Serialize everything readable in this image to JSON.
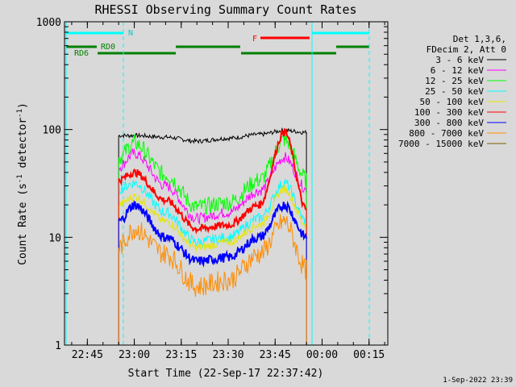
{
  "chart_data": {
    "type": "line",
    "title": "RHESSI Observing Summary Count Rates",
    "xlabel": "Start Time (22-Sep-17 22:37:42)",
    "ylabel": "Count Rate (s",
    "ylabel_sup": "-1",
    "ylabel_mid": " detector",
    "ylabel_end": ")",
    "yscale": "log",
    "xlim": [
      "22:37:42",
      "00:21:00"
    ],
    "ylim": [
      1,
      1000
    ],
    "x_ticks": [
      "22:45",
      "23:00",
      "23:15",
      "23:30",
      "23:45",
      "00:00",
      "00:15"
    ],
    "y_ticks": [
      "1",
      "10",
      "100",
      "1000"
    ],
    "legend": {
      "position": "top-right",
      "header": [
        "Det 1,3,6,",
        "FDecim 2, Att 0"
      ],
      "entries": [
        {
          "label": "3 - 6 keV",
          "color": "#000000"
        },
        {
          "label": "6 - 12 keV",
          "color": "#ff00ff"
        },
        {
          "label": "12 - 25 keV",
          "color": "#00ff00"
        },
        {
          "label": "25 - 50 keV",
          "color": "#00ffff"
        },
        {
          "label": "50 - 100 keV",
          "color": "#e6e600"
        },
        {
          "label": "100 - 300 keV",
          "color": "#ff0000"
        },
        {
          "label": "300 - 800 keV",
          "color": "#0000ff"
        },
        {
          "label": "800 - 7000 keV",
          "color": "#ff8c00"
        },
        {
          "label": "7000 - 15000 keV",
          "color": "#806000"
        }
      ]
    },
    "flag_labels": {
      "night": "N",
      "flare": "F",
      "rd0": "RD0",
      "rd6": "RD6"
    },
    "series": [
      {
        "name": "3 - 6 keV",
        "color": "#000000",
        "x": [
          "22:55",
          "23:00",
          "23:10",
          "23:20",
          "23:30",
          "23:40",
          "23:48",
          "23:55"
        ],
        "y": [
          88,
          88,
          85,
          78,
          83,
          90,
          98,
          94
        ]
      },
      {
        "name": "6 - 12 keV",
        "color": "#ff00ff",
        "x": [
          "22:55",
          "23:00",
          "23:10",
          "23:20",
          "23:30",
          "23:40",
          "23:48",
          "23:55"
        ],
        "y": [
          45,
          60,
          30,
          15,
          17,
          27,
          55,
          28
        ]
      },
      {
        "name": "12 - 25 keV",
        "color": "#00ff00",
        "x": [
          "22:55",
          "23:00",
          "23:10",
          "23:20",
          "23:30",
          "23:40",
          "23:48",
          "23:55"
        ],
        "y": [
          55,
          75,
          38,
          19,
          21,
          34,
          80,
          35
        ]
      },
      {
        "name": "25 - 50 keV",
        "color": "#00ffff",
        "x": [
          "22:55",
          "23:00",
          "23:10",
          "23:20",
          "23:30",
          "23:40",
          "23:48",
          "23:55"
        ],
        "y": [
          28,
          32,
          17,
          9,
          10,
          15,
          32,
          14
        ]
      },
      {
        "name": "50 - 100 keV",
        "color": "#e6e600",
        "x": [
          "22:55",
          "23:00",
          "23:10",
          "23:20",
          "23:30",
          "23:40",
          "23:48",
          "23:55"
        ],
        "y": [
          20,
          24,
          14,
          8,
          9,
          13,
          28,
          13
        ]
      },
      {
        "name": "100 - 300 keV",
        "color": "#ff0000",
        "x": [
          "22:55",
          "23:00",
          "23:10",
          "23:20",
          "23:30",
          "23:40",
          "23:48",
          "23:55"
        ],
        "y": [
          34,
          40,
          22,
          12,
          13,
          20,
          95,
          18
        ]
      },
      {
        "name": "300 - 800 keV",
        "color": "#0000ff",
        "x": [
          "22:55",
          "23:00",
          "23:10",
          "23:20",
          "23:30",
          "23:40",
          "23:48",
          "23:55"
        ],
        "y": [
          14,
          20,
          10,
          6,
          6.5,
          10,
          20,
          10
        ]
      },
      {
        "name": "800 - 7000 keV",
        "color": "#ff8c00",
        "x": [
          "22:55",
          "23:00",
          "23:10",
          "23:20",
          "23:30",
          "23:40",
          "23:48",
          "23:55"
        ],
        "y": [
          8,
          12,
          7,
          3.5,
          4,
          7,
          14,
          5
        ]
      }
    ]
  },
  "footer": {
    "timestamp": "1-Sep-2022 23:39"
  }
}
